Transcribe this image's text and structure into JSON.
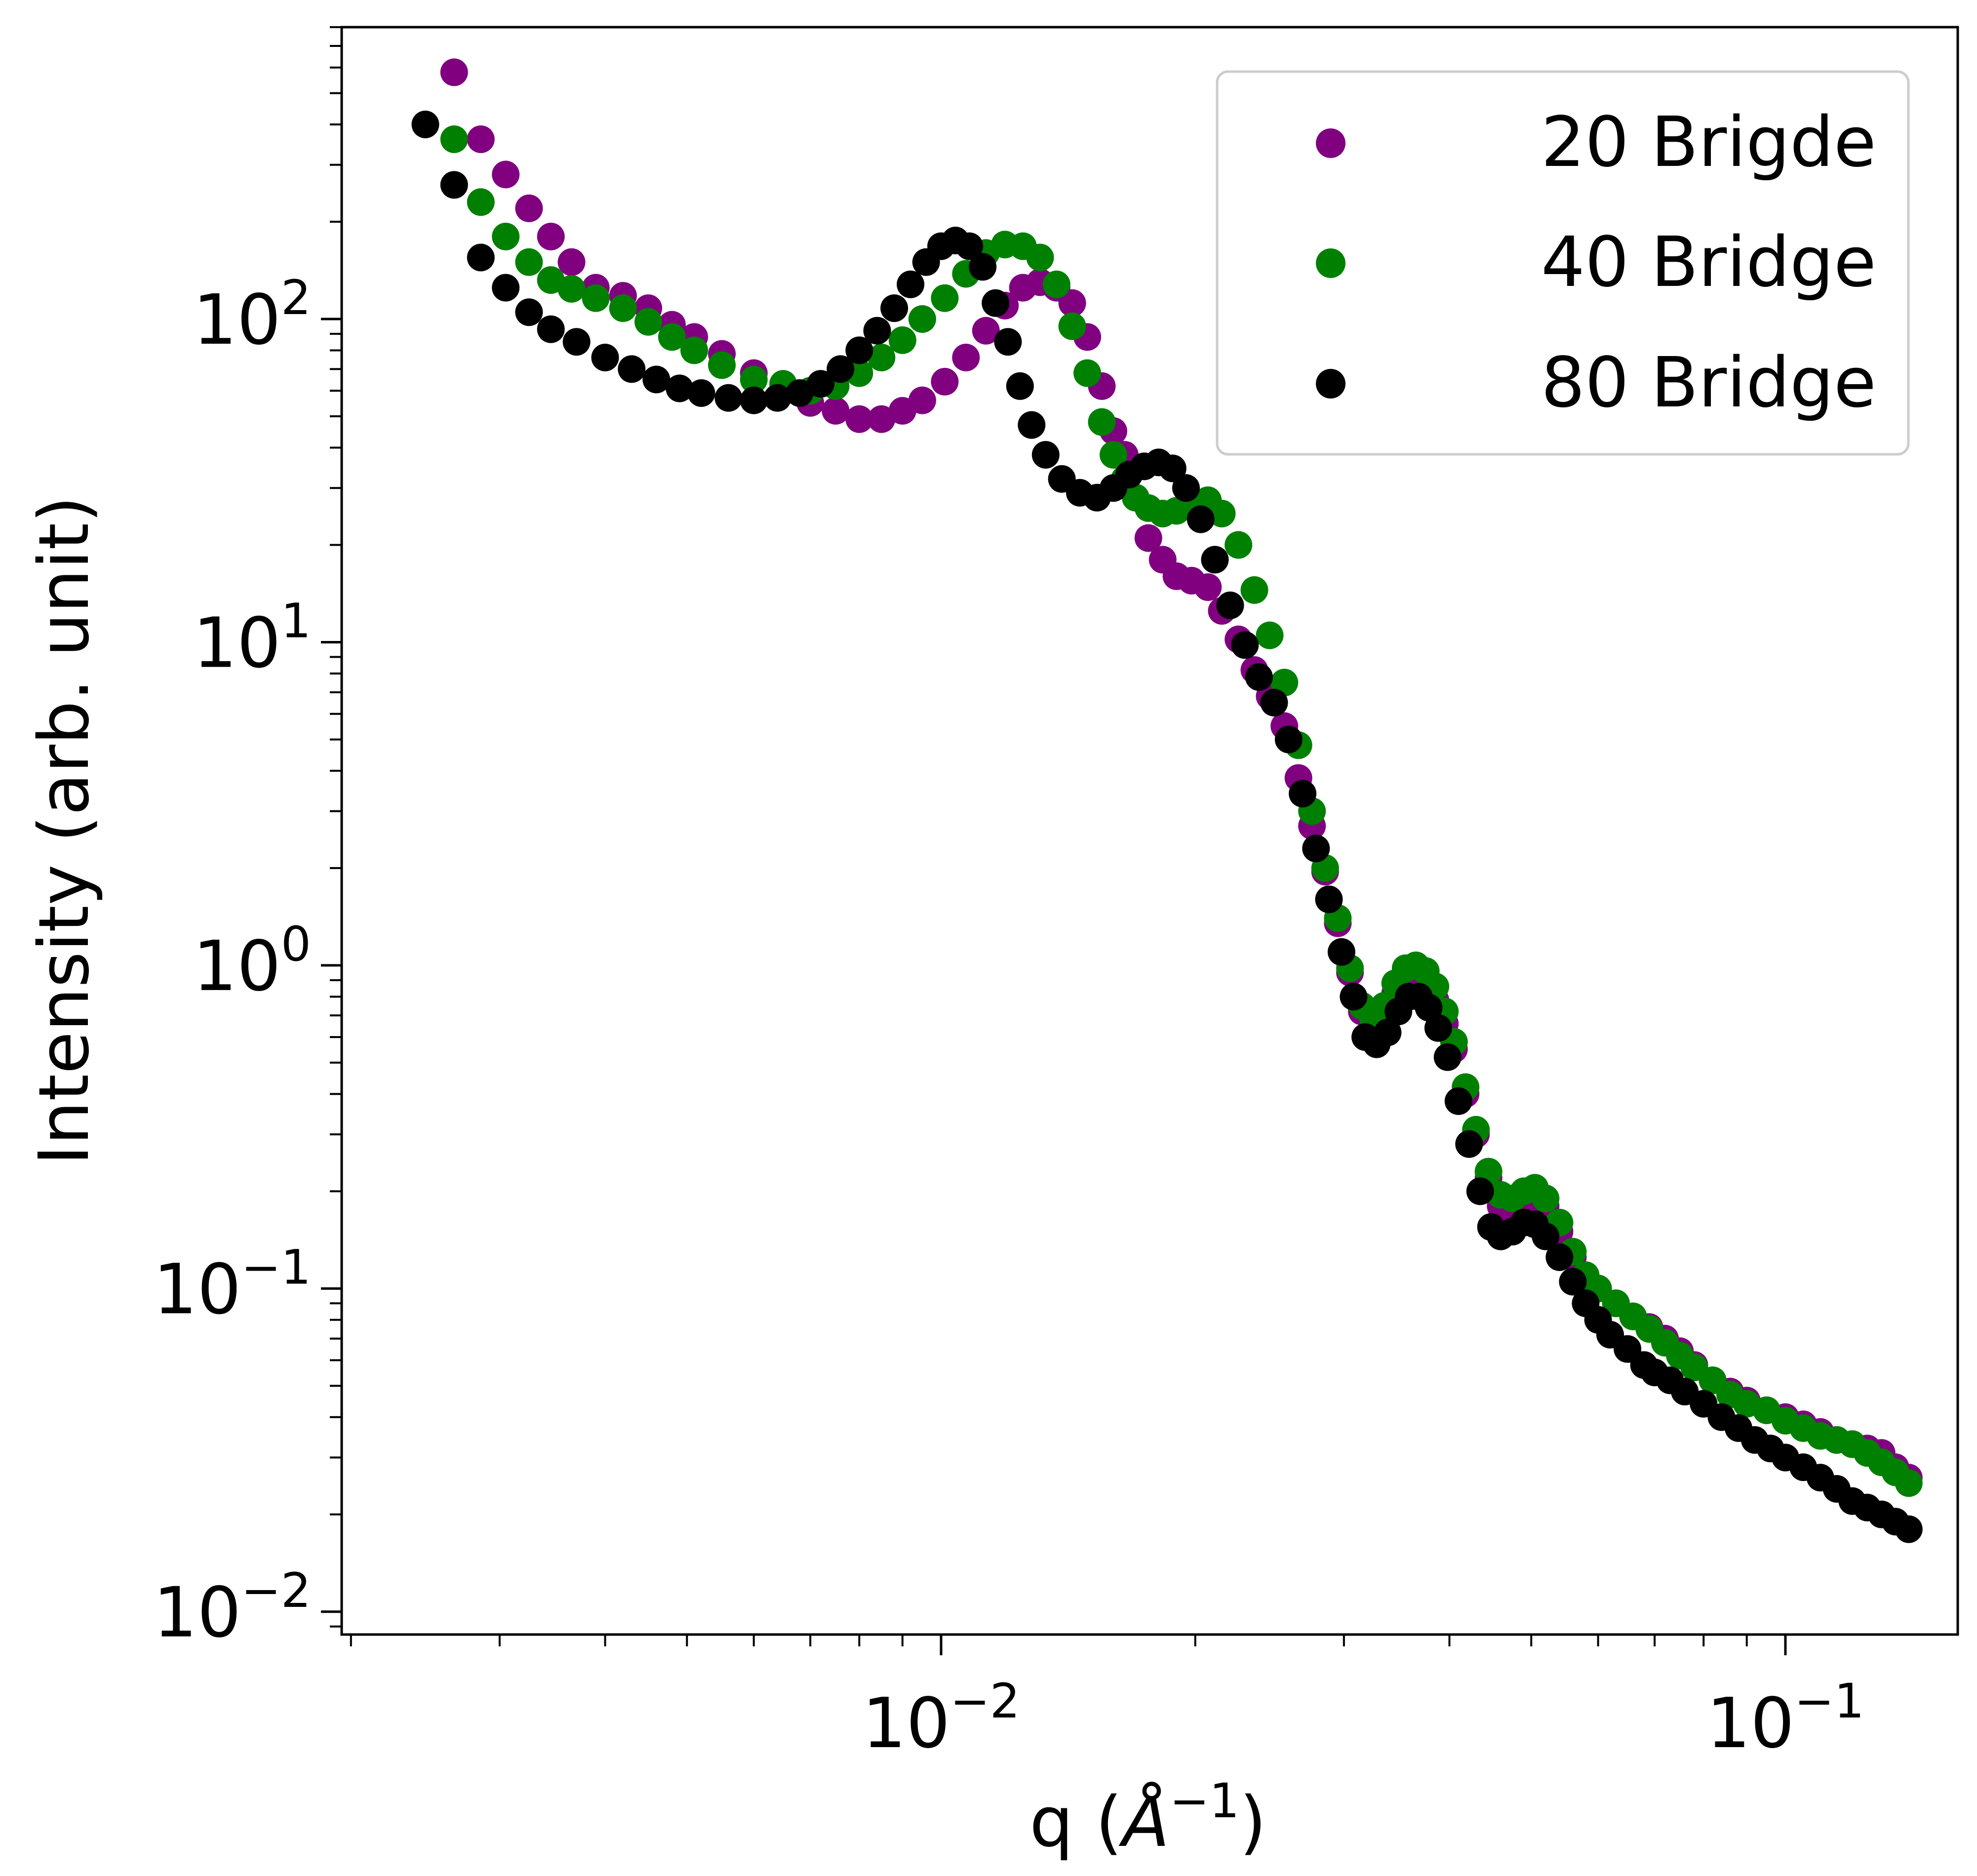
{
  "chart_data": {
    "type": "scatter",
    "xscale": "log",
    "yscale": "log",
    "xlim": [
      0.00195,
      0.16
    ],
    "ylim": [
      0.0085,
      800
    ],
    "xlabel": "q (",
    "xlabel_symbol": "Å",
    "xlabel_exp": "−1",
    "xlabel_close": ")",
    "ylabel": "Intensity (arb. unit)",
    "legend_position": "top-right",
    "grid": false,
    "x_ticks": [
      {
        "value": 0.01,
        "base": "10",
        "exp": "−2"
      },
      {
        "value": 0.1,
        "base": "10",
        "exp": "−1"
      }
    ],
    "y_ticks": [
      {
        "value": 100,
        "base": "10",
        "exp": "2"
      },
      {
        "value": 10,
        "base": "10",
        "exp": "1"
      },
      {
        "value": 1,
        "base": "10",
        "exp": "0"
      },
      {
        "value": 0.1,
        "base": "10",
        "exp": "−1"
      },
      {
        "value": 0.01,
        "base": "10",
        "exp": "−2"
      }
    ],
    "series": [
      {
        "name": "20 Brigde",
        "color": "#800080",
        "points": [
          [
            0.00265,
            580
          ],
          [
            0.00285,
            360
          ],
          [
            0.00305,
            280
          ],
          [
            0.00325,
            220
          ],
          [
            0.00345,
            180
          ],
          [
            0.00365,
            150
          ],
          [
            0.0039,
            125
          ],
          [
            0.0042,
            118
          ],
          [
            0.0045,
            108
          ],
          [
            0.0048,
            96
          ],
          [
            0.0051,
            88
          ],
          [
            0.0055,
            78
          ],
          [
            0.006,
            68
          ],
          [
            0.0065,
            60
          ],
          [
            0.007,
            55
          ],
          [
            0.0075,
            52
          ],
          [
            0.008,
            49
          ],
          [
            0.0085,
            49
          ],
          [
            0.009,
            52
          ],
          [
            0.0095,
            56
          ],
          [
            0.0101,
            64
          ],
          [
            0.0107,
            76
          ],
          [
            0.0113,
            92
          ],
          [
            0.0119,
            110
          ],
          [
            0.0125,
            125
          ],
          [
            0.0131,
            130
          ],
          [
            0.0137,
            125
          ],
          [
            0.0143,
            112
          ],
          [
            0.0149,
            88
          ],
          [
            0.0155,
            62
          ],
          [
            0.016,
            45
          ],
          [
            0.0165,
            38
          ],
          [
            0.017,
            28
          ],
          [
            0.0176,
            21
          ],
          [
            0.0183,
            18
          ],
          [
            0.019,
            16
          ],
          [
            0.0198,
            15.5
          ],
          [
            0.0207,
            14.8
          ],
          [
            0.0215,
            12.5
          ],
          [
            0.0225,
            10.2
          ],
          [
            0.0235,
            8.2
          ],
          [
            0.0245,
            6.8
          ],
          [
            0.0255,
            5.5
          ],
          [
            0.0265,
            3.8
          ],
          [
            0.0275,
            2.7
          ],
          [
            0.0285,
            1.95
          ],
          [
            0.0295,
            1.35
          ],
          [
            0.0305,
            0.95
          ],
          [
            0.0315,
            0.72
          ],
          [
            0.0325,
            0.64
          ],
          [
            0.0335,
            0.7
          ],
          [
            0.0345,
            0.82
          ],
          [
            0.0355,
            0.9
          ],
          [
            0.0365,
            0.92
          ],
          [
            0.0375,
            0.88
          ],
          [
            0.0385,
            0.78
          ],
          [
            0.0395,
            0.66
          ],
          [
            0.0405,
            0.55
          ],
          [
            0.0418,
            0.4
          ],
          [
            0.043,
            0.3
          ],
          [
            0.0445,
            0.22
          ],
          [
            0.046,
            0.18
          ],
          [
            0.0475,
            0.17
          ],
          [
            0.049,
            0.18
          ],
          [
            0.0505,
            0.19
          ],
          [
            0.052,
            0.18
          ],
          [
            0.054,
            0.15
          ],
          [
            0.056,
            0.125
          ],
          [
            0.058,
            0.108
          ],
          [
            0.06,
            0.1
          ],
          [
            0.063,
            0.09
          ],
          [
            0.066,
            0.082
          ],
          [
            0.069,
            0.076
          ],
          [
            0.072,
            0.07
          ],
          [
            0.075,
            0.064
          ],
          [
            0.078,
            0.058
          ],
          [
            0.082,
            0.052
          ],
          [
            0.086,
            0.048
          ],
          [
            0.09,
            0.045
          ],
          [
            0.095,
            0.042
          ],
          [
            0.1,
            0.04
          ],
          [
            0.105,
            0.038
          ],
          [
            0.11,
            0.036
          ],
          [
            0.115,
            0.034
          ],
          [
            0.12,
            0.033
          ],
          [
            0.125,
            0.032
          ],
          [
            0.13,
            0.031
          ],
          [
            0.135,
            0.028
          ],
          [
            0.14,
            0.026
          ]
        ]
      },
      {
        "name": "40 Bridge",
        "color": "#008000",
        "points": [
          [
            0.00265,
            360
          ],
          [
            0.00285,
            230
          ],
          [
            0.00305,
            180
          ],
          [
            0.00325,
            150
          ],
          [
            0.00345,
            132
          ],
          [
            0.00365,
            124
          ],
          [
            0.0039,
            116
          ],
          [
            0.0042,
            108
          ],
          [
            0.0045,
            98
          ],
          [
            0.0048,
            88
          ],
          [
            0.0051,
            80
          ],
          [
            0.0055,
            72
          ],
          [
            0.006,
            65
          ],
          [
            0.0065,
            63
          ],
          [
            0.007,
            60
          ],
          [
            0.0075,
            62
          ],
          [
            0.008,
            68
          ],
          [
            0.0085,
            76
          ],
          [
            0.009,
            86
          ],
          [
            0.0095,
            100
          ],
          [
            0.0101,
            116
          ],
          [
            0.0107,
            138
          ],
          [
            0.0113,
            160
          ],
          [
            0.0119,
            170
          ],
          [
            0.0125,
            168
          ],
          [
            0.0131,
            155
          ],
          [
            0.0137,
            128
          ],
          [
            0.0143,
            95
          ],
          [
            0.0149,
            68
          ],
          [
            0.0155,
            48
          ],
          [
            0.016,
            38
          ],
          [
            0.0165,
            32
          ],
          [
            0.017,
            28
          ],
          [
            0.0176,
            26
          ],
          [
            0.0183,
            25
          ],
          [
            0.019,
            25.5
          ],
          [
            0.0198,
            27
          ],
          [
            0.0207,
            27.5
          ],
          [
            0.0215,
            25
          ],
          [
            0.0225,
            20
          ],
          [
            0.0235,
            14.5
          ],
          [
            0.0245,
            10.5
          ],
          [
            0.0255,
            7.5
          ],
          [
            0.0265,
            4.8
          ],
          [
            0.0275,
            3
          ],
          [
            0.0285,
            2
          ],
          [
            0.0295,
            1.4
          ],
          [
            0.0305,
            0.98
          ],
          [
            0.0315,
            0.75
          ],
          [
            0.0325,
            0.68
          ],
          [
            0.0335,
            0.75
          ],
          [
            0.0345,
            0.88
          ],
          [
            0.0355,
            0.98
          ],
          [
            0.0365,
            1
          ],
          [
            0.0375,
            0.96
          ],
          [
            0.0385,
            0.86
          ],
          [
            0.0395,
            0.72
          ],
          [
            0.0405,
            0.58
          ],
          [
            0.0418,
            0.42
          ],
          [
            0.043,
            0.31
          ],
          [
            0.0445,
            0.23
          ],
          [
            0.046,
            0.195
          ],
          [
            0.0475,
            0.19
          ],
          [
            0.049,
            0.2
          ],
          [
            0.0505,
            0.205
          ],
          [
            0.052,
            0.19
          ],
          [
            0.054,
            0.16
          ],
          [
            0.056,
            0.13
          ],
          [
            0.058,
            0.11
          ],
          [
            0.06,
            0.1
          ],
          [
            0.063,
            0.09
          ],
          [
            0.066,
            0.082
          ],
          [
            0.069,
            0.075
          ],
          [
            0.072,
            0.068
          ],
          [
            0.075,
            0.062
          ],
          [
            0.078,
            0.057
          ],
          [
            0.082,
            0.052
          ],
          [
            0.086,
            0.047
          ],
          [
            0.09,
            0.044
          ],
          [
            0.095,
            0.042
          ],
          [
            0.1,
            0.039
          ],
          [
            0.105,
            0.037
          ],
          [
            0.11,
            0.035
          ],
          [
            0.115,
            0.034
          ],
          [
            0.12,
            0.033
          ],
          [
            0.125,
            0.031
          ],
          [
            0.13,
            0.029
          ],
          [
            0.135,
            0.027
          ],
          [
            0.14,
            0.025
          ]
        ]
      },
      {
        "name": "80 Bridge",
        "color": "#000000",
        "points": [
          [
            0.00245,
            400
          ],
          [
            0.00265,
            260
          ],
          [
            0.00285,
            155
          ],
          [
            0.00305,
            125
          ],
          [
            0.00325,
            105
          ],
          [
            0.00345,
            93
          ],
          [
            0.0037,
            85
          ],
          [
            0.004,
            76
          ],
          [
            0.0043,
            70
          ],
          [
            0.0046,
            65
          ],
          [
            0.0049,
            61
          ],
          [
            0.0052,
            59
          ],
          [
            0.0056,
            57
          ],
          [
            0.006,
            56
          ],
          [
            0.0064,
            57
          ],
          [
            0.0068,
            59
          ],
          [
            0.0072,
            63
          ],
          [
            0.0076,
            70
          ],
          [
            0.008,
            80
          ],
          [
            0.0084,
            92
          ],
          [
            0.0088,
            108
          ],
          [
            0.0092,
            128
          ],
          [
            0.0096,
            150
          ],
          [
            0.01,
            168
          ],
          [
            0.0104,
            175
          ],
          [
            0.0108,
            168
          ],
          [
            0.0112,
            145
          ],
          [
            0.0116,
            112
          ],
          [
            0.012,
            85
          ],
          [
            0.0124,
            62
          ],
          [
            0.0128,
            47
          ],
          [
            0.0133,
            38
          ],
          [
            0.0139,
            32
          ],
          [
            0.0146,
            29
          ],
          [
            0.0153,
            28
          ],
          [
            0.016,
            30
          ],
          [
            0.0167,
            33
          ],
          [
            0.0174,
            35
          ],
          [
            0.0181,
            36
          ],
          [
            0.0188,
            34.5
          ],
          [
            0.0195,
            30
          ],
          [
            0.0203,
            24
          ],
          [
            0.0211,
            18
          ],
          [
            0.022,
            13
          ],
          [
            0.0229,
            9.8
          ],
          [
            0.0238,
            7.8
          ],
          [
            0.0248,
            6.5
          ],
          [
            0.0258,
            5
          ],
          [
            0.0268,
            3.4
          ],
          [
            0.0278,
            2.3
          ],
          [
            0.0288,
            1.6
          ],
          [
            0.0298,
            1.1
          ],
          [
            0.0308,
            0.8
          ],
          [
            0.0318,
            0.6
          ],
          [
            0.0328,
            0.57
          ],
          [
            0.0338,
            0.62
          ],
          [
            0.0348,
            0.72
          ],
          [
            0.0358,
            0.8
          ],
          [
            0.0368,
            0.8
          ],
          [
            0.0378,
            0.74
          ],
          [
            0.0388,
            0.64
          ],
          [
            0.0398,
            0.52
          ],
          [
            0.041,
            0.38
          ],
          [
            0.0422,
            0.28
          ],
          [
            0.0435,
            0.2
          ],
          [
            0.0448,
            0.155
          ],
          [
            0.046,
            0.145
          ],
          [
            0.0475,
            0.15
          ],
          [
            0.049,
            0.16
          ],
          [
            0.0505,
            0.158
          ],
          [
            0.052,
            0.145
          ],
          [
            0.054,
            0.125
          ],
          [
            0.056,
            0.105
          ],
          [
            0.058,
            0.09
          ],
          [
            0.06,
            0.08
          ],
          [
            0.062,
            0.072
          ],
          [
            0.065,
            0.065
          ],
          [
            0.068,
            0.058
          ],
          [
            0.07,
            0.055
          ],
          [
            0.073,
            0.052
          ],
          [
            0.076,
            0.048
          ],
          [
            0.08,
            0.044
          ],
          [
            0.084,
            0.04
          ],
          [
            0.088,
            0.037
          ],
          [
            0.092,
            0.034
          ],
          [
            0.096,
            0.032
          ],
          [
            0.1,
            0.03
          ],
          [
            0.105,
            0.028
          ],
          [
            0.11,
            0.026
          ],
          [
            0.115,
            0.024
          ],
          [
            0.12,
            0.022
          ],
          [
            0.125,
            0.021
          ],
          [
            0.13,
            0.02
          ],
          [
            0.135,
            0.019
          ],
          [
            0.14,
            0.018
          ]
        ]
      }
    ]
  }
}
